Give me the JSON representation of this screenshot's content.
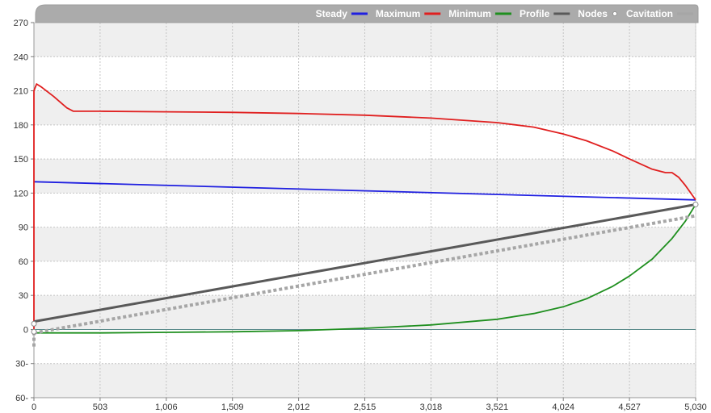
{
  "chart_data": {
    "type": "line",
    "title": "",
    "xlabel": "",
    "ylabel": "",
    "xlim": [
      0,
      5030
    ],
    "ylim": [
      -60,
      270
    ],
    "x_ticks": [
      0,
      503,
      1006,
      1509,
      2012,
      2515,
      3018,
      3521,
      4024,
      4527,
      5030
    ],
    "x_tick_labels": [
      "0",
      "503",
      "1,006",
      "1,509",
      "2,012",
      "2,515",
      "3,018",
      "3,521",
      "4,024",
      "4,527",
      "5,030"
    ],
    "y_ticks": [
      -60,
      -30,
      0,
      30,
      60,
      90,
      120,
      150,
      180,
      210,
      240,
      270
    ],
    "y_tick_labels": [
      "60-",
      "30-",
      "0",
      "30",
      "60",
      "90",
      "120",
      "150",
      "180",
      "210",
      "240",
      "270"
    ],
    "grid": true,
    "legend_position": "top-right",
    "legend": [
      {
        "label": "Steady",
        "color": "#1f1fe0",
        "marker": "line"
      },
      {
        "label": "Maximum",
        "color": "#e01f1f",
        "marker": "line"
      },
      {
        "label": "Minimum",
        "color": "#1f8f1f",
        "marker": "line"
      },
      {
        "label": "Profile",
        "color": "#595959",
        "marker": "line"
      },
      {
        "label": "Nodes",
        "color": "#ffffff",
        "marker": "dot"
      },
      {
        "label": "Cavitation",
        "color": "#a6a6a6",
        "marker": "line"
      }
    ],
    "series": [
      {
        "key": "steady",
        "color": "#1f1fe0",
        "style": "solid",
        "x": [
          0,
          5030
        ],
        "y": [
          130,
          114
        ]
      },
      {
        "key": "maximum",
        "color": "#e01f1f",
        "style": "solid",
        "x": [
          0,
          0,
          20,
          60,
          150,
          250,
          300,
          503,
          1006,
          1509,
          2012,
          2515,
          3018,
          3521,
          3800,
          4024,
          4200,
          4400,
          4527,
          4700,
          4800,
          4850,
          4900,
          4950,
          5030
        ],
        "y": [
          -1,
          210,
          216,
          213,
          205,
          195,
          192,
          192,
          191.5,
          191,
          190,
          188.5,
          186,
          182,
          178,
          172,
          166,
          157,
          150,
          141,
          138,
          138,
          134,
          127,
          114
        ]
      },
      {
        "key": "minimum",
        "color": "#1f8f1f",
        "style": "solid",
        "x": [
          0,
          503,
          1006,
          1509,
          2012,
          2515,
          3018,
          3521,
          3800,
          4024,
          4200,
          4400,
          4527,
          4700,
          4850,
          4950,
          5030
        ],
        "y": [
          -3,
          -3,
          -2.5,
          -2,
          -1,
          1,
          4,
          9,
          14,
          20,
          27,
          38,
          47,
          62,
          80,
          95,
          110
        ]
      },
      {
        "key": "profile",
        "color": "#595959",
        "style": "solid",
        "x": [
          0,
          5030
        ],
        "y": [
          7,
          110
        ]
      },
      {
        "key": "cavitation",
        "color": "#a6a6a6",
        "style": "dotted",
        "x": [
          0,
          5030
        ],
        "y": [
          -3,
          100
        ]
      },
      {
        "key": "cavitation-start",
        "color": "#a6a6a6",
        "style": "dotted",
        "x": [
          0,
          0
        ],
        "y": [
          -15,
          -3
        ]
      },
      {
        "key": "nodes",
        "color": "#ffffff",
        "style": "points",
        "x": [
          0,
          0,
          5030
        ],
        "y": [
          5,
          -2,
          110
        ]
      }
    ]
  }
}
